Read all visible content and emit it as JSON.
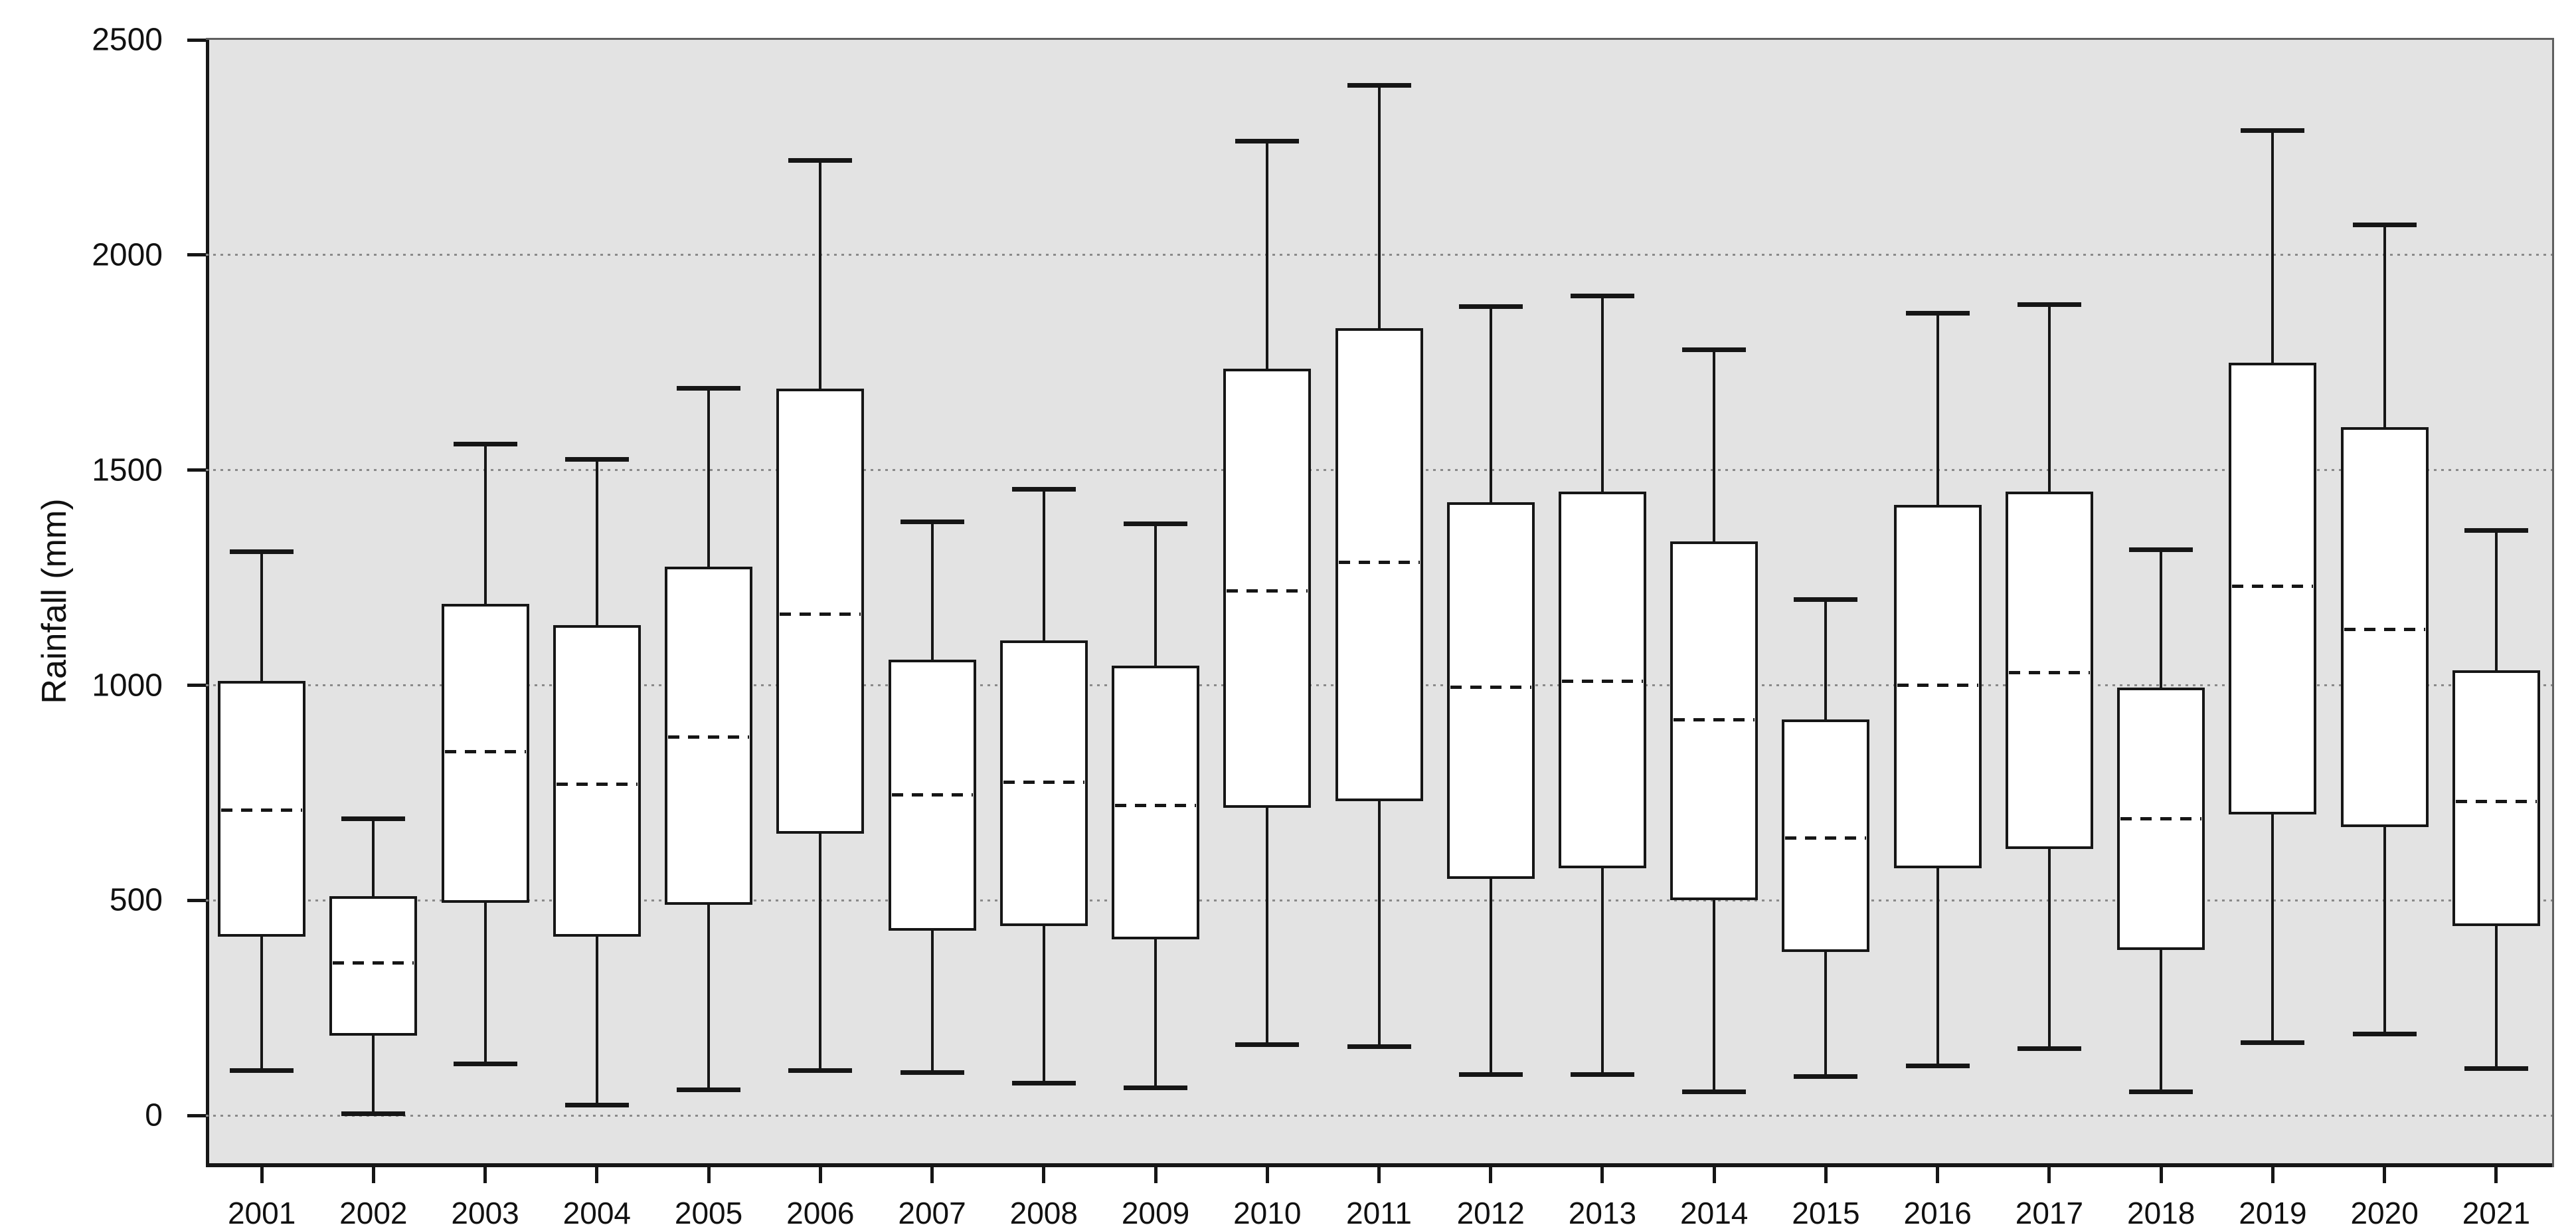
{
  "chart_data": {
    "type": "box",
    "title": "",
    "xlabel": "",
    "ylabel": "Rainfall (mm)",
    "ylim": [
      -120,
      2500
    ],
    "yticks": [
      0,
      500,
      1000,
      1500,
      2000,
      2500
    ],
    "grid_values": [
      0,
      500,
      1000,
      1500,
      2000
    ],
    "grid_on": true,
    "legend_position": "none",
    "median_style": "dashed",
    "colors": {
      "plot_background": "#e3e3e3",
      "page_background": "#ffffff",
      "line": "#161616",
      "gridline": "#8a8a8a",
      "box_fill": "#ffffff",
      "frame": "#5f5f5f"
    },
    "categories": [
      "2001",
      "2002",
      "2003",
      "2004",
      "2005",
      "2006",
      "2007",
      "2008",
      "2009",
      "2010",
      "2011",
      "2012",
      "2013",
      "2014",
      "2015",
      "2016",
      "2017",
      "2018",
      "2019",
      "2020",
      "2021"
    ],
    "series": [
      {
        "year": "2001",
        "min": 105,
        "q1": 415,
        "median": 710,
        "q3": 1010,
        "max": 1310
      },
      {
        "year": "2002",
        "min": 5,
        "q1": 185,
        "median": 355,
        "q3": 510,
        "max": 690
      },
      {
        "year": "2003",
        "min": 120,
        "q1": 495,
        "median": 845,
        "q3": 1190,
        "max": 1560
      },
      {
        "year": "2004",
        "min": 25,
        "q1": 415,
        "median": 770,
        "q3": 1140,
        "max": 1525
      },
      {
        "year": "2005",
        "min": 60,
        "q1": 490,
        "median": 880,
        "q3": 1275,
        "max": 1690
      },
      {
        "year": "2006",
        "min": 105,
        "q1": 655,
        "median": 1165,
        "q3": 1690,
        "max": 2220
      },
      {
        "year": "2007",
        "min": 100,
        "q1": 430,
        "median": 745,
        "q3": 1060,
        "max": 1380
      },
      {
        "year": "2008",
        "min": 75,
        "q1": 440,
        "median": 775,
        "q3": 1105,
        "max": 1455
      },
      {
        "year": "2009",
        "min": 65,
        "q1": 410,
        "median": 720,
        "q3": 1045,
        "max": 1375
      },
      {
        "year": "2010",
        "min": 165,
        "q1": 715,
        "median": 1220,
        "q3": 1735,
        "max": 2265
      },
      {
        "year": "2011",
        "min": 160,
        "q1": 730,
        "median": 1285,
        "q3": 1830,
        "max": 2395
      },
      {
        "year": "2012",
        "min": 95,
        "q1": 550,
        "median": 995,
        "q3": 1425,
        "max": 1880
      },
      {
        "year": "2013",
        "min": 95,
        "q1": 575,
        "median": 1010,
        "q3": 1450,
        "max": 1905
      },
      {
        "year": "2014",
        "min": 55,
        "q1": 500,
        "median": 920,
        "q3": 1335,
        "max": 1780
      },
      {
        "year": "2015",
        "min": 90,
        "q1": 380,
        "median": 645,
        "q3": 920,
        "max": 1200
      },
      {
        "year": "2016",
        "min": 115,
        "q1": 575,
        "median": 1000,
        "q3": 1420,
        "max": 1865
      },
      {
        "year": "2017",
        "min": 155,
        "q1": 620,
        "median": 1030,
        "q3": 1450,
        "max": 1885
      },
      {
        "year": "2018",
        "min": 55,
        "q1": 385,
        "median": 690,
        "q3": 995,
        "max": 1315
      },
      {
        "year": "2019",
        "min": 170,
        "q1": 700,
        "median": 1230,
        "q3": 1750,
        "max": 2290
      },
      {
        "year": "2020",
        "min": 190,
        "q1": 670,
        "median": 1130,
        "q3": 1600,
        "max": 2070
      },
      {
        "year": "2021",
        "min": 110,
        "q1": 440,
        "median": 730,
        "q3": 1035,
        "max": 1360
      }
    ]
  }
}
